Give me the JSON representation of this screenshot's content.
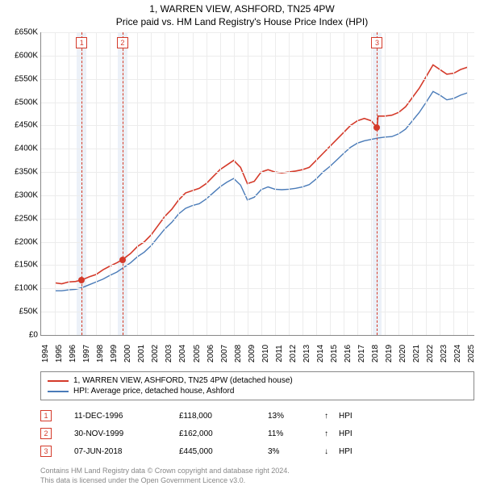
{
  "title": {
    "main": "1, WARREN VIEW, ASHFORD, TN25 4PW",
    "sub": "Price paid vs. HM Land Registry's House Price Index (HPI)"
  },
  "chart": {
    "type": "line",
    "background_color": "#ffffff",
    "grid_color": "#ececec",
    "axis_color": "#888888",
    "title_fontsize": 12,
    "tick_fontsize": 10,
    "x": {
      "min": 1994,
      "max": 2025.5,
      "ticks": [
        1994,
        1995,
        1996,
        1997,
        1998,
        1999,
        2000,
        2001,
        2002,
        2003,
        2004,
        2005,
        2006,
        2007,
        2008,
        2009,
        2010,
        2011,
        2012,
        2013,
        2014,
        2015,
        2016,
        2017,
        2018,
        2019,
        2020,
        2021,
        2022,
        2023,
        2024,
        2025
      ],
      "tick_labels": [
        "1994",
        "1995",
        "1996",
        "1997",
        "1998",
        "1999",
        "2000",
        "2001",
        "2002",
        "2003",
        "2004",
        "2005",
        "2006",
        "2007",
        "2008",
        "2009",
        "2010",
        "2011",
        "2012",
        "2013",
        "2014",
        "2015",
        "2016",
        "2017",
        "2018",
        "2019",
        "2020",
        "2021",
        "2022",
        "2023",
        "2024",
        "2025"
      ]
    },
    "y": {
      "min": 0,
      "max": 650000,
      "ticks": [
        0,
        50000,
        100000,
        150000,
        200000,
        250000,
        300000,
        350000,
        400000,
        450000,
        500000,
        550000,
        600000,
        650000
      ],
      "tick_labels": [
        "£0",
        "£50K",
        "£100K",
        "£150K",
        "£200K",
        "£250K",
        "£300K",
        "£350K",
        "£400K",
        "£450K",
        "£500K",
        "£550K",
        "£600K",
        "£650K"
      ]
    },
    "series": [
      {
        "id": "price",
        "label": "1, WARREN VIEW, ASHFORD, TN25 4PW (detached house)",
        "color": "#d43a2a",
        "width": 1.6,
        "data": [
          [
            1995.0,
            112000
          ],
          [
            1995.5,
            110000
          ],
          [
            1996.0,
            114000
          ],
          [
            1996.5,
            115000
          ],
          [
            1996.95,
            118000
          ],
          [
            1997.5,
            125000
          ],
          [
            1998.0,
            130000
          ],
          [
            1998.5,
            140000
          ],
          [
            1999.0,
            148000
          ],
          [
            1999.5,
            155000
          ],
          [
            1999.92,
            162000
          ],
          [
            2000.5,
            175000
          ],
          [
            2001.0,
            190000
          ],
          [
            2001.5,
            200000
          ],
          [
            2002.0,
            215000
          ],
          [
            2002.5,
            235000
          ],
          [
            2003.0,
            255000
          ],
          [
            2003.5,
            270000
          ],
          [
            2004.0,
            290000
          ],
          [
            2004.5,
            305000
          ],
          [
            2005.0,
            310000
          ],
          [
            2005.5,
            315000
          ],
          [
            2006.0,
            325000
          ],
          [
            2006.5,
            340000
          ],
          [
            2007.0,
            355000
          ],
          [
            2007.5,
            365000
          ],
          [
            2008.0,
            375000
          ],
          [
            2008.5,
            360000
          ],
          [
            2009.0,
            325000
          ],
          [
            2009.5,
            330000
          ],
          [
            2010.0,
            350000
          ],
          [
            2010.5,
            355000
          ],
          [
            2011.0,
            350000
          ],
          [
            2011.5,
            348000
          ],
          [
            2012.0,
            350000
          ],
          [
            2012.5,
            352000
          ],
          [
            2013.0,
            355000
          ],
          [
            2013.5,
            360000
          ],
          [
            2014.0,
            375000
          ],
          [
            2014.5,
            390000
          ],
          [
            2015.0,
            405000
          ],
          [
            2015.5,
            420000
          ],
          [
            2016.0,
            435000
          ],
          [
            2016.5,
            450000
          ],
          [
            2017.0,
            460000
          ],
          [
            2017.5,
            465000
          ],
          [
            2018.0,
            460000
          ],
          [
            2018.43,
            445000
          ],
          [
            2018.5,
            470000
          ],
          [
            2019.0,
            470000
          ],
          [
            2019.5,
            472000
          ],
          [
            2020.0,
            478000
          ],
          [
            2020.5,
            490000
          ],
          [
            2021.0,
            510000
          ],
          [
            2021.5,
            530000
          ],
          [
            2022.0,
            555000
          ],
          [
            2022.5,
            580000
          ],
          [
            2023.0,
            570000
          ],
          [
            2023.5,
            560000
          ],
          [
            2024.0,
            562000
          ],
          [
            2024.5,
            570000
          ],
          [
            2025.0,
            575000
          ]
        ]
      },
      {
        "id": "hpi",
        "label": "HPI: Average price, detached house, Ashford",
        "color": "#4a7bb8",
        "width": 1.4,
        "data": [
          [
            1995.0,
            95000
          ],
          [
            1995.5,
            95000
          ],
          [
            1996.0,
            97000
          ],
          [
            1996.5,
            98000
          ],
          [
            1997.0,
            102000
          ],
          [
            1997.5,
            108000
          ],
          [
            1998.0,
            114000
          ],
          [
            1998.5,
            120000
          ],
          [
            1999.0,
            128000
          ],
          [
            1999.5,
            135000
          ],
          [
            2000.0,
            145000
          ],
          [
            2000.5,
            155000
          ],
          [
            2001.0,
            168000
          ],
          [
            2001.5,
            178000
          ],
          [
            2002.0,
            192000
          ],
          [
            2002.5,
            210000
          ],
          [
            2003.0,
            228000
          ],
          [
            2003.5,
            242000
          ],
          [
            2004.0,
            260000
          ],
          [
            2004.5,
            272000
          ],
          [
            2005.0,
            278000
          ],
          [
            2005.5,
            282000
          ],
          [
            2006.0,
            292000
          ],
          [
            2006.5,
            305000
          ],
          [
            2007.0,
            318000
          ],
          [
            2007.5,
            328000
          ],
          [
            2008.0,
            336000
          ],
          [
            2008.5,
            322000
          ],
          [
            2009.0,
            290000
          ],
          [
            2009.5,
            296000
          ],
          [
            2010.0,
            312000
          ],
          [
            2010.5,
            318000
          ],
          [
            2011.0,
            313000
          ],
          [
            2011.5,
            312000
          ],
          [
            2012.0,
            313000
          ],
          [
            2012.5,
            315000
          ],
          [
            2013.0,
            318000
          ],
          [
            2013.5,
            323000
          ],
          [
            2014.0,
            335000
          ],
          [
            2014.5,
            350000
          ],
          [
            2015.0,
            362000
          ],
          [
            2015.5,
            376000
          ],
          [
            2016.0,
            390000
          ],
          [
            2016.5,
            403000
          ],
          [
            2017.0,
            412000
          ],
          [
            2017.5,
            417000
          ],
          [
            2018.0,
            420000
          ],
          [
            2018.5,
            423000
          ],
          [
            2019.0,
            425000
          ],
          [
            2019.5,
            426000
          ],
          [
            2020.0,
            432000
          ],
          [
            2020.5,
            442000
          ],
          [
            2021.0,
            460000
          ],
          [
            2021.5,
            478000
          ],
          [
            2022.0,
            500000
          ],
          [
            2022.5,
            523000
          ],
          [
            2023.0,
            515000
          ],
          [
            2023.5,
            505000
          ],
          [
            2024.0,
            508000
          ],
          [
            2024.5,
            515000
          ],
          [
            2025.0,
            520000
          ]
        ]
      }
    ],
    "markers": [
      {
        "n": "1",
        "date_x": 1996.95,
        "price_y": 118000,
        "band_width_years": 0.7
      },
      {
        "n": "2",
        "date_x": 1999.92,
        "price_y": 162000,
        "band_width_years": 0.7
      },
      {
        "n": "3",
        "date_x": 2018.43,
        "price_y": 445000,
        "band_width_years": 0.7
      }
    ],
    "marker_band_color": "#dce6f2",
    "marker_line_color": "#d43a2a",
    "marker_box_border": "#d43a2a",
    "marker_dot_color": "#d43a2a"
  },
  "legend": {
    "border_color": "#888888",
    "fontsize": 10,
    "items": [
      {
        "color": "#d43a2a",
        "label": "1, WARREN VIEW, ASHFORD, TN25 4PW (detached house)"
      },
      {
        "color": "#4a7bb8",
        "label": "HPI: Average price, detached house, Ashford"
      }
    ]
  },
  "transactions": {
    "hpi_label": "HPI",
    "rows": [
      {
        "n": "1",
        "date": "11-DEC-1996",
        "price": "£118,000",
        "pct": "13%",
        "arrow": "↑"
      },
      {
        "n": "2",
        "date": "30-NOV-1999",
        "price": "£162,000",
        "pct": "11%",
        "arrow": "↑"
      },
      {
        "n": "3",
        "date": "07-JUN-2018",
        "price": "£445,000",
        "pct": "3%",
        "arrow": "↓"
      }
    ]
  },
  "footnote": {
    "line1": "Contains HM Land Registry data © Crown copyright and database right 2024.",
    "line2": "This data is licensed under the Open Government Licence v3.0."
  }
}
